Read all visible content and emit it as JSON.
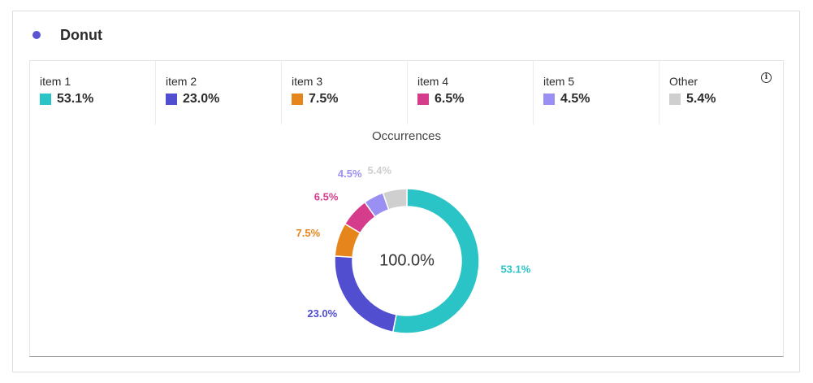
{
  "card": {
    "title": "Donut",
    "accent_color": "#5a55d2"
  },
  "legend": [
    {
      "name": "item 1",
      "value": "53.1%",
      "color": "#2ac3c6"
    },
    {
      "name": "item 2",
      "value": "23.0%",
      "color": "#514ed0"
    },
    {
      "name": "item 3",
      "value": "7.5%",
      "color": "#e5851b"
    },
    {
      "name": "item 4",
      "value": "6.5%",
      "color": "#d53d8c"
    },
    {
      "name": "item 5",
      "value": "4.5%",
      "color": "#9a8ff2"
    },
    {
      "name": "Other",
      "value": "5.4%",
      "color": "#cfcfcf"
    }
  ],
  "info_icon": "info-circle-icon",
  "chart_data": {
    "type": "pie",
    "donut": true,
    "title": "Occurrences",
    "center_label": "100.0%",
    "categories": [
      "item 1",
      "item 2",
      "item 3",
      "item 4",
      "item 5",
      "Other"
    ],
    "values": [
      53.1,
      23.0,
      7.5,
      6.5,
      4.5,
      5.4
    ],
    "labels": [
      "53.1%",
      "23.0%",
      "7.5%",
      "6.5%",
      "4.5%",
      "5.4%"
    ],
    "colors": [
      "#2ac3c6",
      "#514ed0",
      "#e5851b",
      "#d53d8c",
      "#9a8ff2",
      "#cfcfcf"
    ],
    "legend_position": "top"
  }
}
